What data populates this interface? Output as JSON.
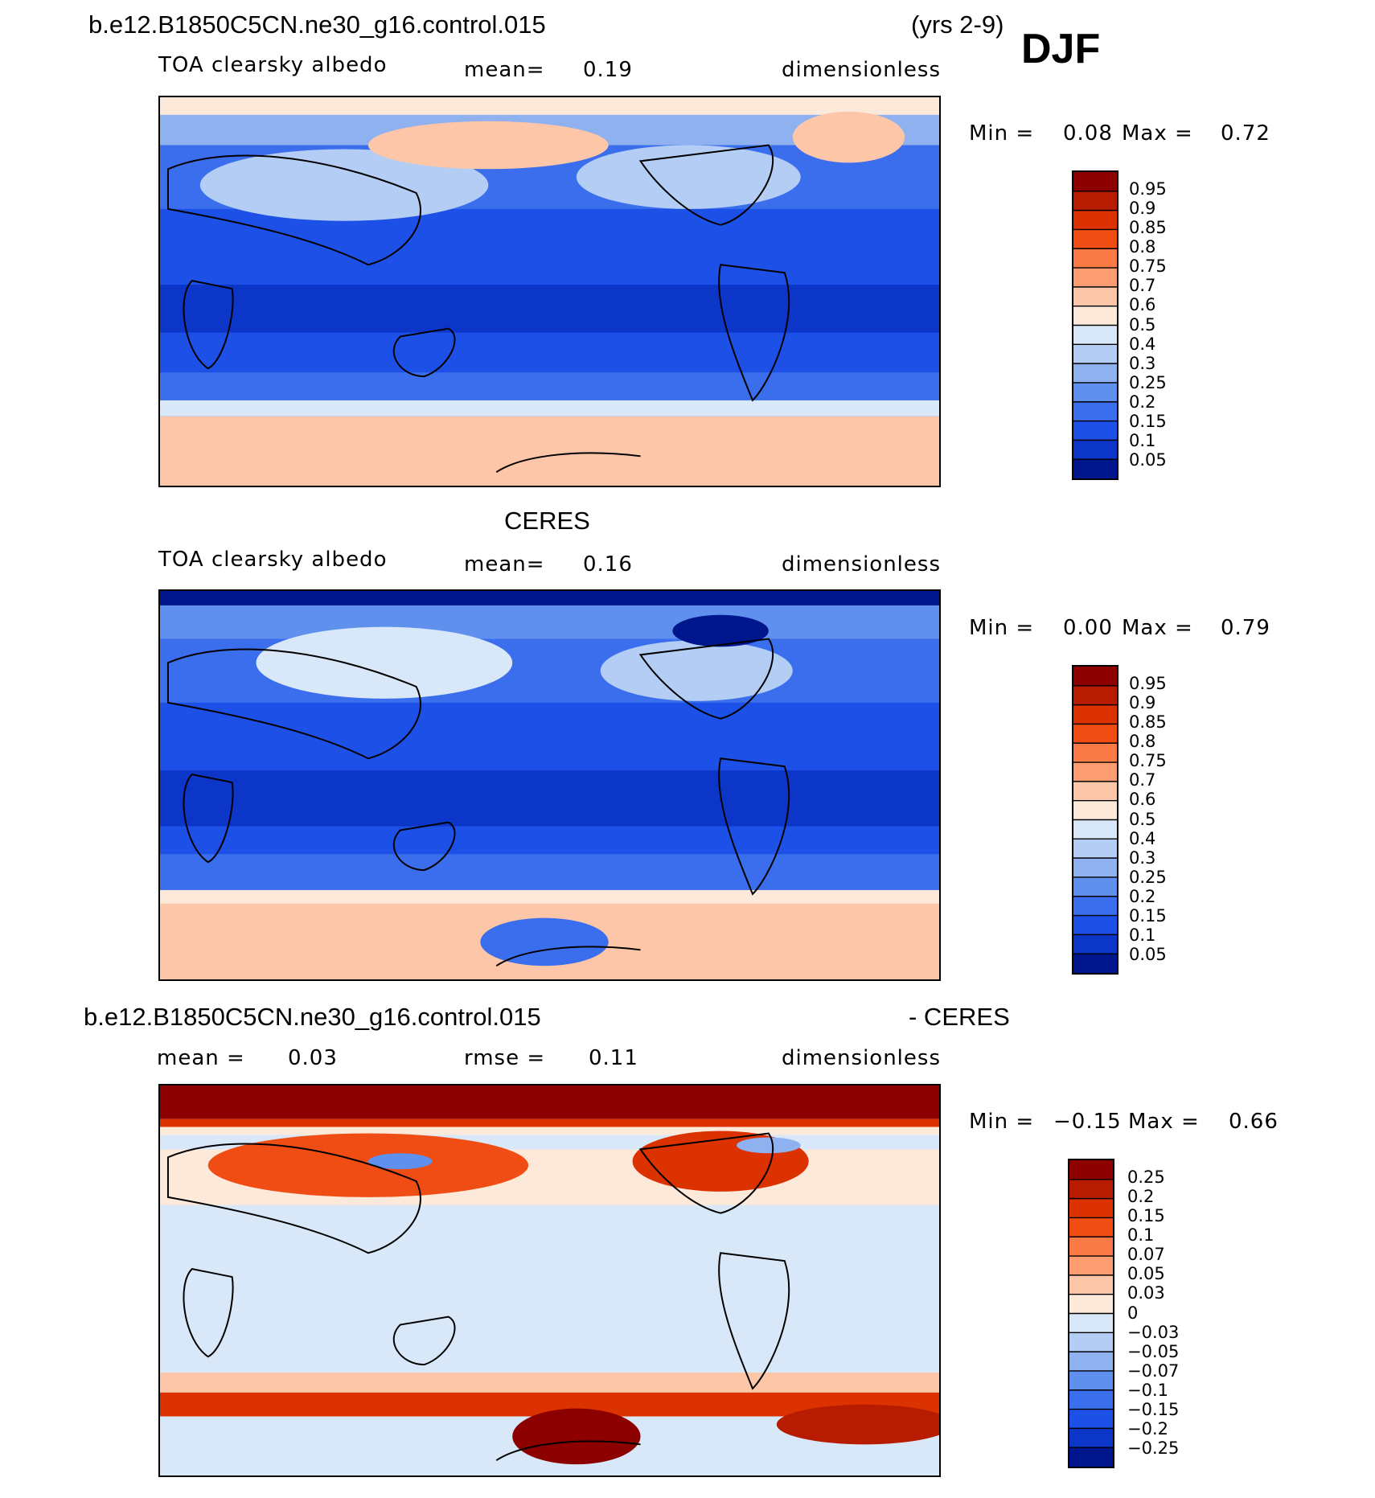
{
  "season": "DJF",
  "panel1": {
    "case": "b.e12.B1850C5CN.ne30_g16.control.015",
    "years": "(yrs 2-9)",
    "variable": "TOA clearsky albedo",
    "mean_label": "mean=",
    "mean_value": "0.19",
    "units": "dimensionless",
    "min_label": "Min =",
    "min_value": "0.08",
    "max_label": "Max =",
    "max_value": "0.72"
  },
  "panel2": {
    "title": "CERES",
    "variable": "TOA clearsky albedo",
    "mean_label": "mean=",
    "mean_value": "0.16",
    "units": "dimensionless",
    "min_label": "Min =",
    "min_value": "0.00",
    "max_label": "Max =",
    "max_value": "0.79"
  },
  "panel3": {
    "case": "b.e12.B1850C5CN.ne30_g16.control.015",
    "minus": "- CERES",
    "mean_label": "mean =",
    "mean_value": "0.03",
    "rmse_label": "rmse =",
    "rmse_value": "0.11",
    "units": "dimensionless",
    "min_label": "Min =",
    "min_value": "−0.15",
    "max_label": "Max =",
    "max_value": "0.66"
  },
  "colorbar_abs": {
    "labels": [
      "0.95",
      "0.9",
      "0.85",
      "0.8",
      "0.75",
      "0.7",
      "0.6",
      "0.5",
      "0.4",
      "0.3",
      "0.25",
      "0.2",
      "0.15",
      "0.1",
      "0.05"
    ],
    "colors": [
      "#8c0000",
      "#b71c00",
      "#dc3200",
      "#f04d14",
      "#fb7b46",
      "#fd9c70",
      "#fdc6a8",
      "#fde9d9",
      "#d8e8f8",
      "#b3cdf4",
      "#8fb1f0",
      "#6090ee",
      "#3a6eec",
      "#1c50e6",
      "#0c36c8",
      "#00168c"
    ]
  },
  "colorbar_diff": {
    "labels": [
      "0.25",
      "0.2",
      "0.15",
      "0.1",
      "0.07",
      "0.05",
      "0.03",
      "0",
      "−0.03",
      "−0.05",
      "−0.07",
      "−0.1",
      "−0.15",
      "−0.2",
      "−0.25"
    ],
    "colors": [
      "#8c0000",
      "#b71c00",
      "#dc3200",
      "#f04d14",
      "#fb7b46",
      "#fd9c70",
      "#fdc6a8",
      "#fde9d9",
      "#d8e8f8",
      "#b3cdf4",
      "#8fb1f0",
      "#6090ee",
      "#3a6eec",
      "#1c50e6",
      "#0c36c8",
      "#00168c"
    ]
  }
}
